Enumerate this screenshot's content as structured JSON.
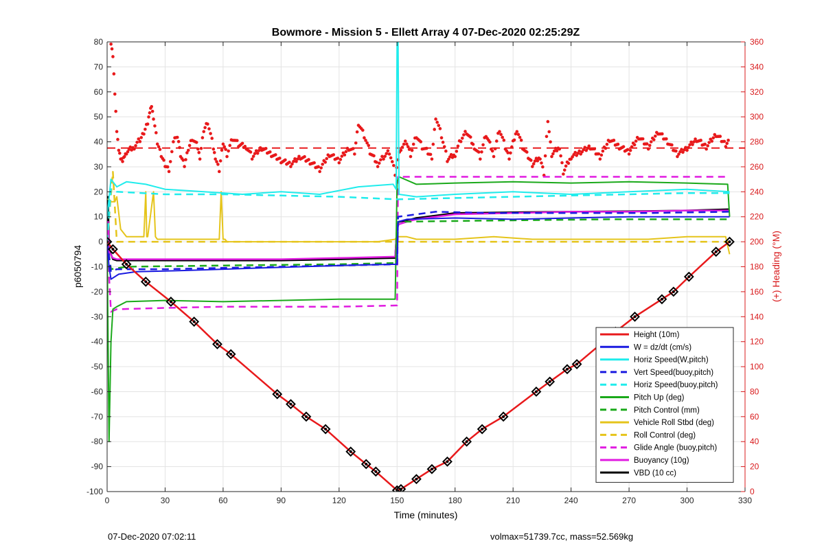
{
  "footer": {
    "left": "07-Dec-2020 07:02:11",
    "right": "volmax=51739.7cc, mass=52.569kg"
  },
  "chart_data": {
    "type": "line",
    "title": "Bowmore - Mission 5 - Ellett Array 4 07-Dec-2020 02:25:29Z",
    "xlabel": "Time (minutes)",
    "ylabel": "p6050794",
    "y2label": "(+) Heading (°M)",
    "xlim": [
      0,
      330
    ],
    "ylim": [
      -100,
      80
    ],
    "y2lim": [
      0,
      360
    ],
    "xticks": [
      0,
      30,
      60,
      90,
      120,
      150,
      180,
      210,
      240,
      270,
      300,
      330
    ],
    "yticks": [
      -100,
      -90,
      -80,
      -70,
      -60,
      -50,
      -40,
      -30,
      -20,
      -10,
      0,
      10,
      20,
      30,
      40,
      50,
      60,
      70,
      80
    ],
    "y2ticks": [
      0,
      20,
      40,
      60,
      80,
      100,
      120,
      140,
      160,
      180,
      200,
      220,
      240,
      260,
      280,
      300,
      320,
      340,
      360
    ],
    "grid": true,
    "legend_position": "lower-right",
    "colors": {
      "red": "#e8191b",
      "blue": "#1a1ae0",
      "cyan": "#20ecec",
      "green": "#1aa91a",
      "yellow": "#e5c41a",
      "magenta": "#e01ae0",
      "black": "#000000",
      "right_axis": "#d8191b"
    },
    "series": [
      {
        "name": "Height (10m)",
        "color": "red",
        "style": "solid",
        "width": 2.5,
        "markers": "diamond-black",
        "x": [
          0,
          3,
          10,
          20,
          33,
          45,
          57,
          64,
          88,
          95,
          103,
          113,
          126,
          134,
          139,
          150,
          152,
          160,
          168,
          176,
          186,
          194,
          205,
          222,
          229,
          238,
          243,
          263,
          273,
          287,
          293,
          301,
          315,
          322
        ],
        "y": [
          0,
          -3,
          -9,
          -16,
          -24,
          -32,
          -41,
          -45,
          -61,
          -65,
          -70,
          -75,
          -84,
          -89,
          -92,
          -99.5,
          -99,
          -95,
          -91,
          -88,
          -80,
          -75,
          -70,
          -60,
          -56,
          -51,
          -49,
          -36,
          -30,
          -23,
          -20,
          -14,
          -4,
          0
        ]
      },
      {
        "name": "W = dz/dt (cm/s)",
        "color": "blue",
        "style": "solid",
        "width": 2,
        "x": [
          0,
          1,
          2,
          6,
          15,
          40,
          80,
          120,
          150,
          150.5,
          155,
          180,
          210,
          240,
          270,
          300,
          322
        ],
        "y": [
          0,
          -10,
          -15,
          -13,
          -12,
          -11.5,
          -10.5,
          -9.5,
          -9,
          8,
          9,
          9.5,
          9,
          9.5,
          10,
          10,
          10
        ]
      },
      {
        "name": "Horiz Speed(W,pitch)",
        "color": "cyan",
        "style": "solid",
        "width": 2,
        "x": [
          0,
          2,
          5,
          10,
          20,
          30,
          50,
          70,
          90,
          110,
          130,
          148,
          149.5,
          150,
          150.5,
          151,
          160,
          180,
          210,
          240,
          270,
          300,
          322
        ],
        "y": [
          10,
          25,
          22,
          24,
          23,
          21,
          20,
          19,
          20,
          19,
          22,
          23,
          21,
          80,
          80,
          19,
          18,
          19,
          20,
          19,
          20,
          21,
          20
        ]
      },
      {
        "name": "Vert Speed(buoy,pitch)",
        "color": "blue",
        "style": "dashed",
        "width": 2.5,
        "x": [
          0,
          2,
          5,
          30,
          60,
          90,
          120,
          150,
          150.5,
          170,
          200,
          240,
          280,
          322
        ],
        "y": [
          0,
          -12,
          -11,
          -11,
          -10.5,
          -10,
          -9.5,
          -9,
          10,
          12,
          11.5,
          11.5,
          11.5,
          12
        ]
      },
      {
        "name": "Horiz Speed(buoy,pitch)",
        "color": "cyan",
        "style": "dashed",
        "width": 2.5,
        "x": [
          0,
          2,
          5,
          30,
          60,
          90,
          120,
          150,
          150.5,
          180,
          210,
          240,
          270,
          300,
          322
        ],
        "y": [
          0,
          21,
          20,
          19,
          19,
          18.5,
          18,
          17,
          17,
          17.5,
          18,
          18.5,
          19,
          19.5,
          19.5
        ]
      },
      {
        "name": "Pitch Up (deg)",
        "color": "green",
        "style": "solid",
        "width": 2,
        "x": [
          0,
          1,
          2,
          3,
          5,
          10,
          30,
          60,
          90,
          120,
          149,
          150,
          151,
          160,
          180,
          210,
          240,
          270,
          300,
          321,
          322
        ],
        "y": [
          0,
          -80,
          -40,
          -27,
          -26,
          -24,
          -23.5,
          -24,
          -23.5,
          -23,
          -23,
          24,
          26,
          23,
          23.5,
          24,
          23.5,
          24,
          23.5,
          23,
          10
        ]
      },
      {
        "name": "Pitch Control (mm)",
        "color": "green",
        "style": "dashed",
        "width": 2.5,
        "x": [
          0,
          2,
          10,
          60,
          120,
          150,
          150.5,
          200,
          260,
          322
        ],
        "y": [
          0,
          -11,
          -10,
          -9.5,
          -9,
          -8.5,
          8,
          8.5,
          9,
          9
        ]
      },
      {
        "name": "Vehicle Roll Stbd (deg)",
        "color": "yellow",
        "style": "solid",
        "width": 2,
        "x": [
          0,
          1,
          2,
          4,
          5,
          7,
          10,
          19,
          20,
          20.5,
          21,
          24,
          25,
          26,
          30,
          40,
          50,
          58,
          59,
          60,
          61,
          62,
          80,
          100,
          120,
          140,
          149,
          150,
          150.5,
          155,
          160,
          180,
          200,
          220,
          250,
          280,
          300,
          320,
          322
        ],
        "y": [
          17,
          17,
          16,
          16,
          18,
          5,
          2,
          2,
          20,
          2,
          2,
          20,
          2,
          1,
          1,
          1,
          1,
          1,
          20,
          1,
          1,
          0,
          0,
          0,
          0,
          0,
          1,
          2,
          2,
          2,
          1,
          1,
          2,
          1,
          1,
          1,
          2,
          2,
          -5
        ]
      },
      {
        "name": "Roll Control (deg)",
        "color": "yellow",
        "style": "dashed",
        "width": 2.5,
        "x": [
          0,
          3,
          5,
          20,
          40,
          60,
          80,
          100,
          120,
          150,
          150.5,
          170,
          200,
          240,
          280,
          322
        ],
        "y": [
          0,
          28,
          0,
          0,
          0,
          0,
          0,
          0,
          0,
          0,
          0,
          0,
          0,
          0,
          0,
          0
        ]
      },
      {
        "name": "Glide Angle (buoy,pitch)",
        "color": "magenta",
        "style": "dashed",
        "width": 2.5,
        "x": [
          0,
          2,
          5,
          30,
          60,
          90,
          120,
          150,
          150.5,
          155,
          180,
          210,
          240,
          270,
          300,
          322
        ],
        "y": [
          0,
          -28,
          -27,
          -26.5,
          -26,
          -26,
          -26,
          -25.5,
          26,
          26,
          26,
          26,
          26,
          26,
          26,
          26
        ]
      },
      {
        "name": "Buoyancy (10g)",
        "color": "magenta",
        "style": "solid",
        "width": 2.5,
        "x": [
          0,
          0.5,
          1,
          3,
          5,
          30,
          60,
          90,
          120,
          149,
          150,
          151,
          155,
          160,
          180,
          210,
          240,
          270,
          300,
          322
        ],
        "y": [
          0,
          8,
          -4,
          -6.5,
          -7,
          -7,
          -7,
          -7,
          -6.5,
          -6,
          6,
          7,
          8,
          9,
          11,
          11.5,
          12,
          12,
          12.5,
          12.5
        ]
      },
      {
        "name": "VBD (10 cc)",
        "color": "black",
        "style": "solid",
        "width": 2.5,
        "x": [
          0,
          0.5,
          1,
          3,
          5,
          30,
          60,
          90,
          120,
          149,
          150,
          151,
          155,
          160,
          180,
          210,
          240,
          270,
          300,
          322
        ],
        "y": [
          0,
          18,
          -3,
          -7,
          -7.5,
          -7.5,
          -7.5,
          -7.5,
          -7,
          -6.5,
          7,
          8,
          8.5,
          9.5,
          11.5,
          11.8,
          12,
          12.2,
          12.5,
          13
        ]
      }
    ],
    "heading_series": {
      "name": "Heading",
      "axis": "right",
      "color": "red",
      "marker": "dot",
      "x": [
        2,
        3,
        4,
        5,
        6,
        7,
        8,
        9,
        10,
        14,
        17,
        19,
        21,
        22,
        23,
        24,
        26,
        28,
        30,
        32,
        35,
        37,
        38,
        40,
        42,
        44,
        47,
        48,
        50,
        52,
        55,
        56,
        58,
        60,
        62,
        65,
        68,
        72,
        75,
        80,
        85,
        90,
        95,
        100,
        105,
        110,
        115,
        120,
        125,
        128,
        130,
        133,
        136,
        140,
        143,
        146,
        149,
        152,
        155,
        157,
        160,
        163,
        166,
        168,
        170,
        173,
        176,
        180,
        183,
        186,
        190,
        193,
        196,
        200,
        203,
        206,
        208,
        212,
        215,
        220,
        224,
        226,
        228,
        230,
        234,
        236,
        240,
        245,
        250,
        255,
        260,
        265,
        270,
        275,
        280,
        285,
        290,
        295,
        300,
        305,
        310,
        315,
        320,
        322
      ],
      "y": [
        360,
        350,
        320,
        290,
        275,
        268,
        266,
        270,
        272,
        276,
        282,
        288,
        296,
        305,
        310,
        300,
        280,
        270,
        262,
        258,
        285,
        282,
        270,
        262,
        275,
        283,
        276,
        268,
        290,
        296,
        276,
        268,
        258,
        280,
        270,
        283,
        278,
        276,
        268,
        275,
        270,
        265,
        262,
        268,
        264,
        258,
        270,
        265,
        275,
        272,
        295,
        285,
        272,
        262,
        268,
        272,
        255,
        275,
        280,
        270,
        285,
        276,
        272,
        268,
        300,
        285,
        266,
        270,
        282,
        288,
        276,
        268,
        286,
        270,
        290,
        276,
        268,
        290,
        276,
        262,
        268,
        255,
        298,
        270,
        276,
        256,
        268,
        272,
        276,
        268,
        282,
        276,
        272,
        284,
        276,
        288,
        280,
        270,
        275,
        282,
        276,
        286,
        278,
        282
      ]
    },
    "height_hline": {
      "axis": "right",
      "value": 275,
      "color": "red",
      "style": "dashed"
    }
  }
}
